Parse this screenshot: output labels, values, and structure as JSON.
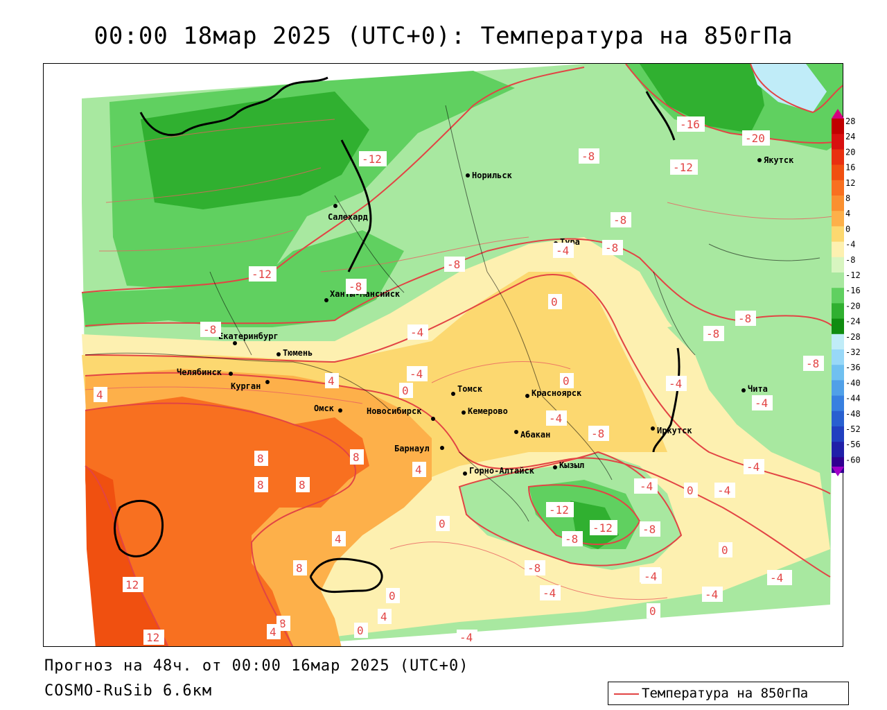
{
  "title": "00:00 18мар 2025 (UTC+0): Температура на 850гПа",
  "footer": {
    "forecast": "Прогноз на 48ч. от 00:00 16мар 2025 (UTC+0)",
    "model": "COSMO-RuSib 6.6км"
  },
  "legend": {
    "line_label": "Температура на 850гПа",
    "line_color": "#e24444"
  },
  "colorbar": {
    "ticks": [
      "28",
      "24",
      "20",
      "16",
      "12",
      "8",
      "4",
      "0",
      "-4",
      "-8",
      "-12",
      "-16",
      "-20",
      "-24",
      "-28",
      "-32",
      "-36",
      "-40",
      "-44",
      "-48",
      "-52",
      "-56",
      "-60"
    ],
    "colors": [
      "#c00000",
      "#d81010",
      "#e83010",
      "#f05010",
      "#f87020",
      "#fa9030",
      "#fdb04a",
      "#fcd870",
      "#fdf0b0",
      "#d8f5c0",
      "#a8e8a0",
      "#60d060",
      "#30b030",
      "#108c10",
      "#c0ecf8",
      "#98d8f8",
      "#70c0f0",
      "#50a0e8",
      "#3880e0",
      "#2860d0",
      "#2040c0",
      "#2020a8",
      "#300090"
    ]
  },
  "cities": [
    {
      "name": "Норильск"
    },
    {
      "name": "Якутск"
    },
    {
      "name": "Салехард"
    },
    {
      "name": "Тура"
    },
    {
      "name": "Ханты-Мансийск"
    },
    {
      "name": "Екатеринбург"
    },
    {
      "name": "Тюмень"
    },
    {
      "name": "Челябинск"
    },
    {
      "name": "Курган"
    },
    {
      "name": "Омск"
    },
    {
      "name": "Новосибирск"
    },
    {
      "name": "Томск"
    },
    {
      "name": "Красноярск"
    },
    {
      "name": "Кемерово"
    },
    {
      "name": "Абакан"
    },
    {
      "name": "Барнаул"
    },
    {
      "name": "Горно-Алтайск"
    },
    {
      "name": "Кызыл"
    },
    {
      "name": "Иркутск"
    },
    {
      "name": "Чита"
    }
  ],
  "isotherm_labels": [
    "-16",
    "-20",
    "-12",
    "-8",
    "-12",
    "-8",
    "-8",
    "-8",
    "-12",
    "-8",
    "-8",
    "-8",
    "-8",
    "-4",
    "0",
    "-4",
    "-8",
    "-4",
    "-4",
    "0",
    "4",
    "4",
    "0",
    "-4",
    "-4",
    "-8",
    "-4",
    "-4",
    "-4",
    "4",
    "8",
    "8",
    "8",
    "8",
    "4",
    "0",
    "0",
    "-4",
    "-12",
    "-12",
    "-8",
    "-8",
    "-4",
    "0",
    "-4",
    "8",
    "12",
    "12",
    "8",
    "4",
    "0",
    "4",
    "0",
    "-4",
    "-8",
    "-4",
    "-4",
    "-4",
    "0",
    "-4"
  ]
}
